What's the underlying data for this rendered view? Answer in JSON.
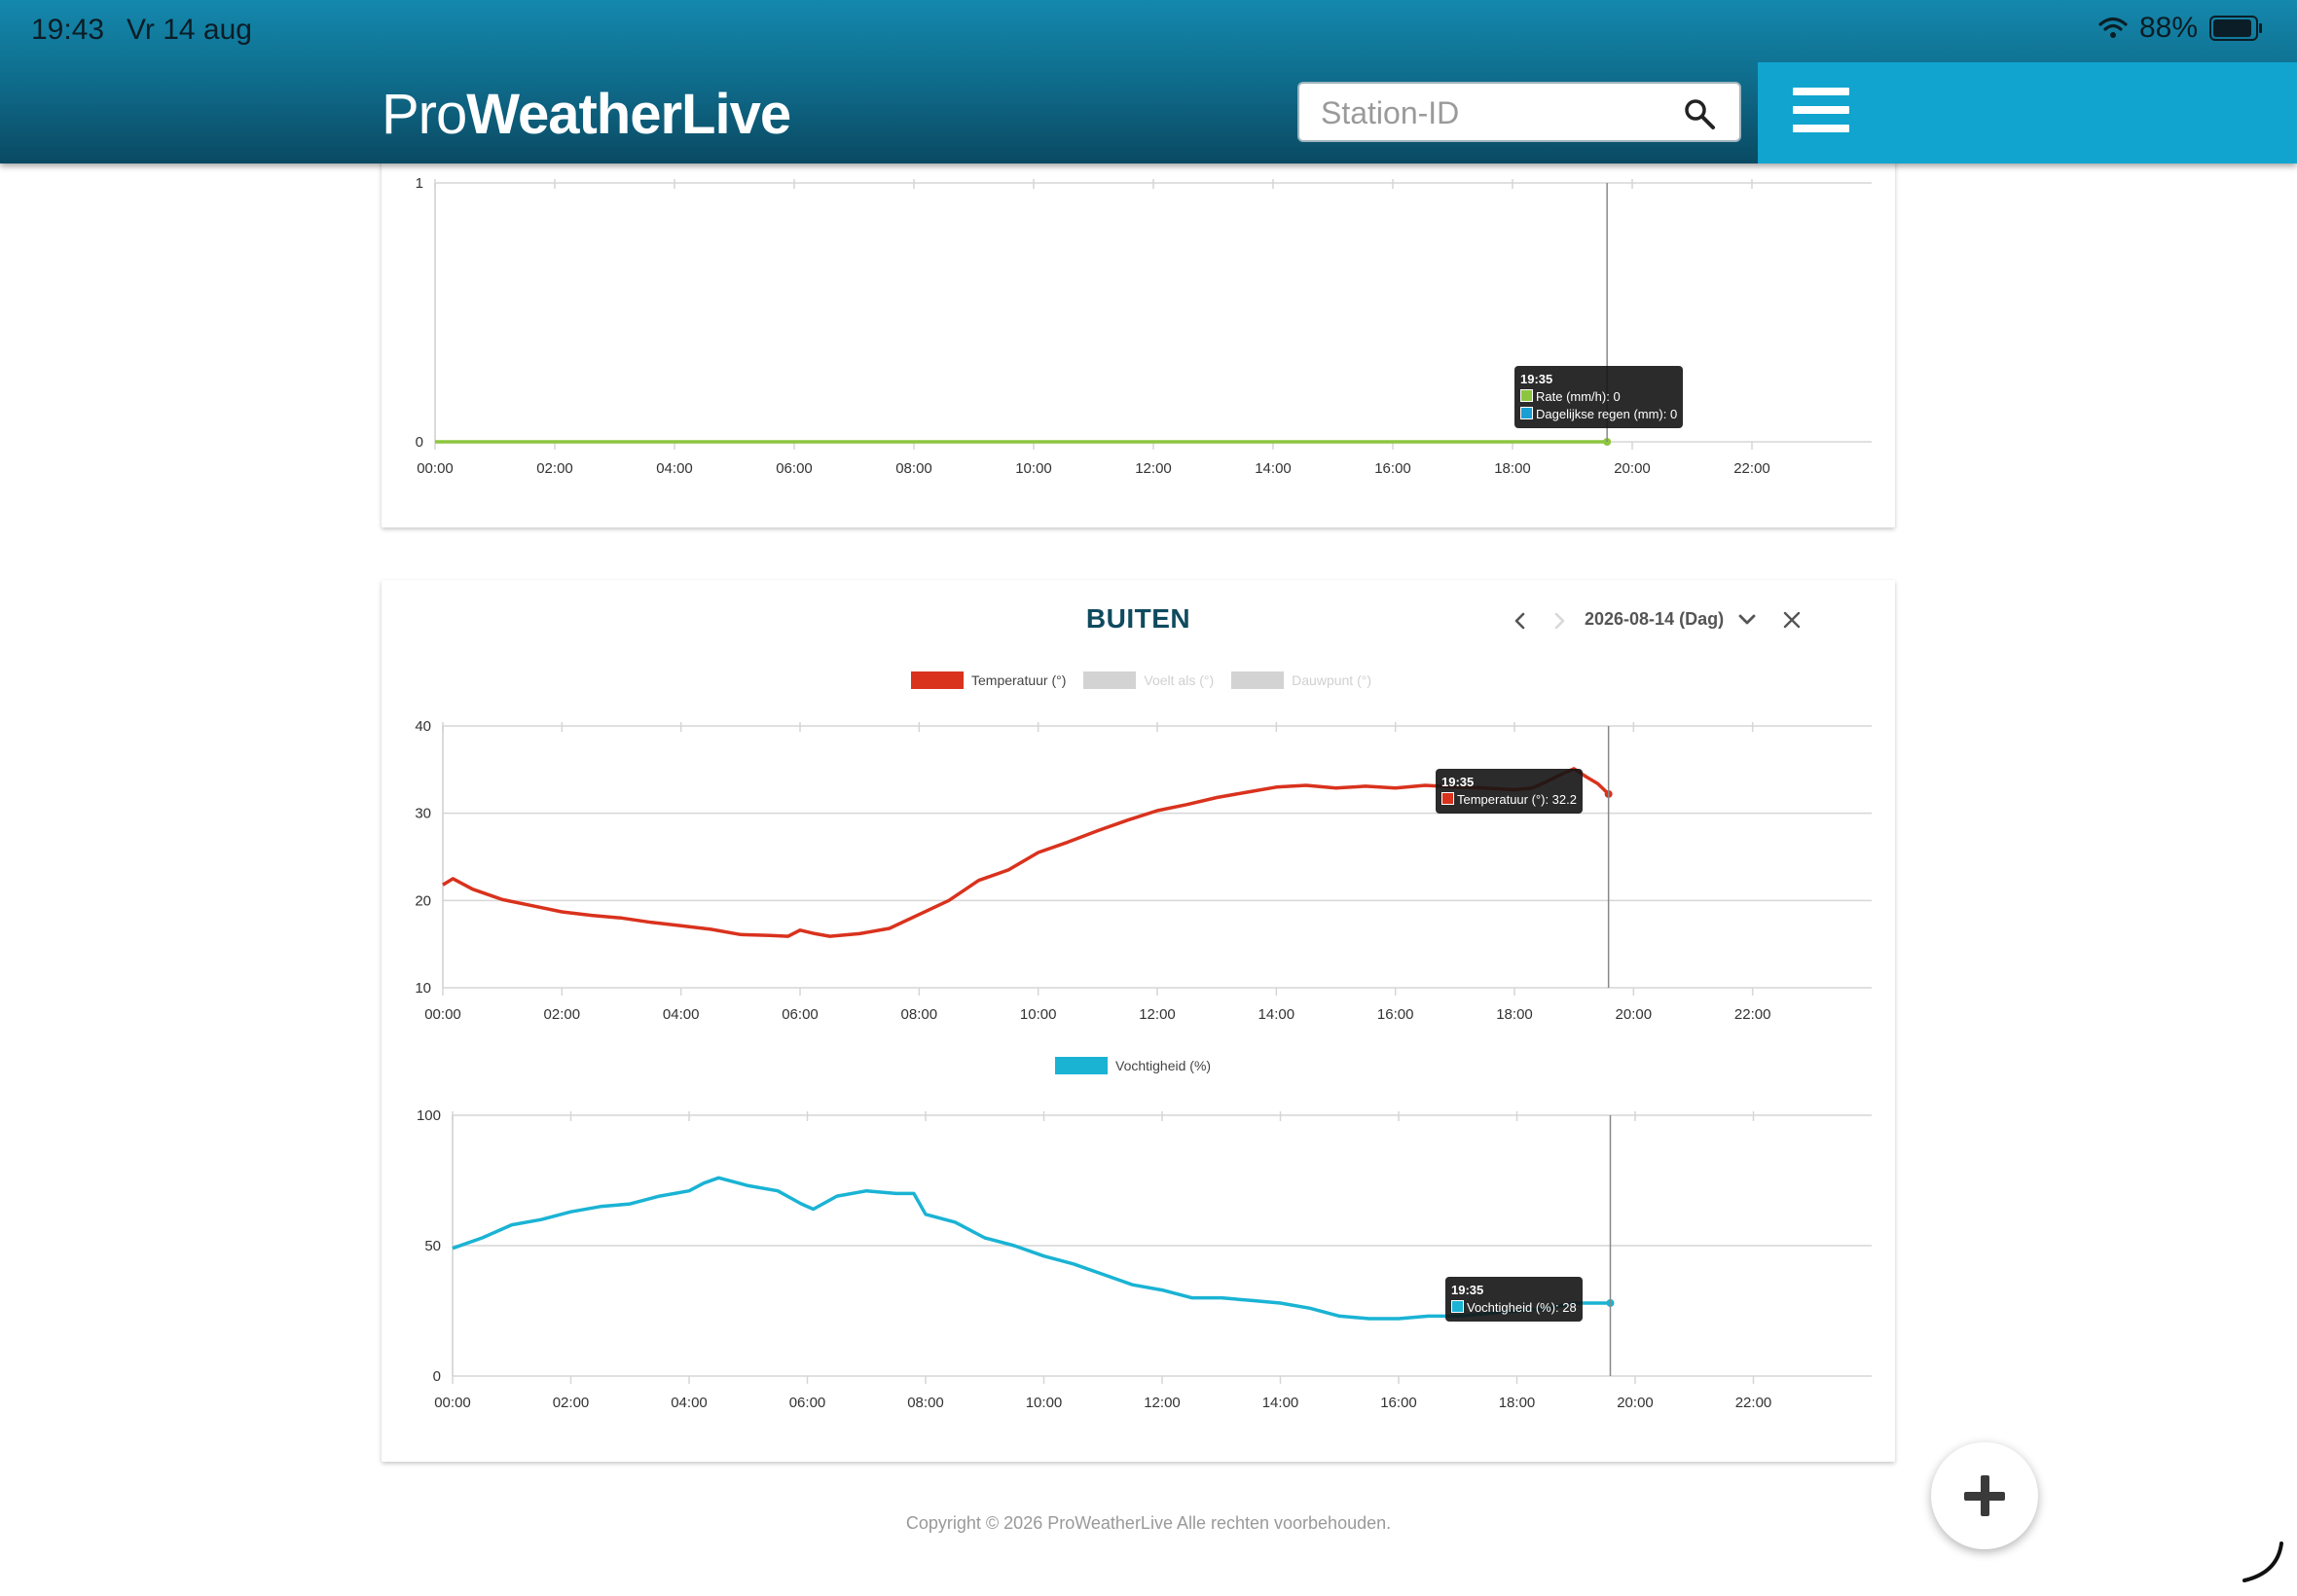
{
  "status_bar": {
    "time": "19:43",
    "date": "Vr 14 aug",
    "battery": "88%",
    "wifi_icon": "wifi-icon",
    "battery_icon": "battery-icon"
  },
  "header": {
    "logo_pro": "Pro",
    "logo_weather": "WeatherLive",
    "search_placeholder": "Station-ID",
    "search_value": "",
    "search_icon": "search-icon",
    "menu_icon": "hamburger-menu-icon"
  },
  "rain_chart": {
    "tooltip": {
      "time": "19:35",
      "line1": "Rate (mm/h): 0",
      "line2": "Dagelijkse regen (mm): 0"
    }
  },
  "outside_card": {
    "title": "BUITEN",
    "date_label": "2026-08-14 (Dag)",
    "temp_tooltip": {
      "time": "19:35",
      "line1": "Temperatuur (°): 32.2"
    },
    "humidity_tooltip": {
      "time": "19:35",
      "line1": "Vochtigheid (%): 28"
    }
  },
  "footer": {
    "copyright": "Copyright © 2026 ProWeatherLive Alle rechten voorbehouden."
  },
  "colors": {
    "header": "#0f6f8f",
    "accent": "#10a4cf",
    "temperature": "#d9321d",
    "humidity": "#1ab3d4",
    "rain_rate": "#8cc63f",
    "rain_daily": "#1a9fd4",
    "disabled": "#d3d3d3"
  },
  "chart_data": [
    {
      "id": "rain",
      "type": "line",
      "title": "",
      "xlabel": "",
      "ylabel": "",
      "x_ticks": [
        "00:00",
        "02:00",
        "04:00",
        "06:00",
        "08:00",
        "10:00",
        "12:00",
        "14:00",
        "16:00",
        "18:00",
        "20:00",
        "22:00"
      ],
      "xlim": [
        0,
        24
      ],
      "y_ticks": [
        0,
        1
      ],
      "ylim": [
        0,
        1
      ],
      "grid": true,
      "series": [
        {
          "name": "Rate (mm/h)",
          "color": "#8cc63f",
          "points": [
            [
              0,
              0
            ],
            [
              19.58,
              0
            ]
          ]
        }
      ],
      "crosshair_x": 19.58
    },
    {
      "id": "temperature",
      "type": "line",
      "title": "",
      "xlabel": "",
      "ylabel": "",
      "legend_position": "top-center",
      "legend": [
        {
          "label": "Temperatuur (°)",
          "color": "#d9321d",
          "active": true
        },
        {
          "label": "Voelt als (°)",
          "color": "#d3d3d3",
          "active": false
        },
        {
          "label": "Dauwpunt (°)",
          "color": "#d3d3d3",
          "active": false
        }
      ],
      "x_ticks": [
        "00:00",
        "02:00",
        "04:00",
        "06:00",
        "08:00",
        "10:00",
        "12:00",
        "14:00",
        "16:00",
        "18:00",
        "20:00",
        "22:00"
      ],
      "xlim": [
        0,
        24
      ],
      "y_ticks": [
        10,
        20,
        30,
        40
      ],
      "ylim": [
        10,
        40
      ],
      "grid": true,
      "series": [
        {
          "name": "Temperatuur (°)",
          "color": "#d9321d",
          "points": [
            [
              0,
              21.8
            ],
            [
              0.17,
              22.5
            ],
            [
              0.5,
              21.3
            ],
            [
              1,
              20.1
            ],
            [
              1.5,
              19.4
            ],
            [
              2,
              18.7
            ],
            [
              2.5,
              18.3
            ],
            [
              3,
              18.0
            ],
            [
              3.5,
              17.5
            ],
            [
              4,
              17.1
            ],
            [
              4.5,
              16.7
            ],
            [
              5,
              16.1
            ],
            [
              5.5,
              16.0
            ],
            [
              5.8,
              15.9
            ],
            [
              6,
              16.6
            ],
            [
              6.25,
              16.2
            ],
            [
              6.5,
              15.9
            ],
            [
              7,
              16.2
            ],
            [
              7.5,
              16.8
            ],
            [
              8,
              18.4
            ],
            [
              8.5,
              20.0
            ],
            [
              9,
              22.3
            ],
            [
              9.5,
              23.5
            ],
            [
              10,
              25.5
            ],
            [
              10.5,
              26.7
            ],
            [
              11,
              28.0
            ],
            [
              11.5,
              29.2
            ],
            [
              12,
              30.3
            ],
            [
              12.5,
              31.0
            ],
            [
              13,
              31.8
            ],
            [
              13.5,
              32.4
            ],
            [
              14,
              33.0
            ],
            [
              14.5,
              33.2
            ],
            [
              15,
              32.9
            ],
            [
              15.5,
              33.1
            ],
            [
              16,
              32.9
            ],
            [
              16.5,
              33.2
            ],
            [
              17,
              33.0
            ],
            [
              17.5,
              32.9
            ],
            [
              18,
              32.7
            ],
            [
              18.3,
              32.9
            ],
            [
              18.5,
              33.5
            ],
            [
              18.8,
              34.5
            ],
            [
              19,
              35.1
            ],
            [
              19.2,
              34.2
            ],
            [
              19.4,
              33.4
            ],
            [
              19.58,
              32.2
            ]
          ]
        }
      ],
      "crosshair_x": 19.58
    },
    {
      "id": "humidity",
      "type": "line",
      "title": "",
      "xlabel": "",
      "ylabel": "",
      "legend_position": "top-center",
      "legend": [
        {
          "label": "Vochtigheid (%)",
          "color": "#1ab3d4",
          "active": true
        }
      ],
      "x_ticks": [
        "00:00",
        "02:00",
        "04:00",
        "06:00",
        "08:00",
        "10:00",
        "12:00",
        "14:00",
        "16:00",
        "18:00",
        "20:00",
        "22:00"
      ],
      "xlim": [
        0,
        24
      ],
      "y_ticks": [
        0,
        50,
        100
      ],
      "ylim": [
        0,
        100
      ],
      "grid": true,
      "series": [
        {
          "name": "Vochtigheid (%)",
          "color": "#1ab3d4",
          "points": [
            [
              0,
              49
            ],
            [
              0.5,
              53
            ],
            [
              1,
              58
            ],
            [
              1.5,
              60
            ],
            [
              2,
              63
            ],
            [
              2.5,
              65
            ],
            [
              3,
              66
            ],
            [
              3.5,
              69
            ],
            [
              4,
              71
            ],
            [
              4.25,
              74
            ],
            [
              4.5,
              76
            ],
            [
              5,
              73
            ],
            [
              5.5,
              71
            ],
            [
              5.9,
              66
            ],
            [
              6.1,
              64
            ],
            [
              6.5,
              69
            ],
            [
              7,
              71
            ],
            [
              7.5,
              70
            ],
            [
              7.8,
              70
            ],
            [
              8,
              62
            ],
            [
              8.5,
              59
            ],
            [
              9,
              53
            ],
            [
              9.5,
              50
            ],
            [
              10,
              46
            ],
            [
              10.5,
              43
            ],
            [
              11,
              39
            ],
            [
              11.5,
              35
            ],
            [
              12,
              33
            ],
            [
              12.5,
              30
            ],
            [
              13,
              30
            ],
            [
              13.5,
              29
            ],
            [
              14,
              28
            ],
            [
              14.5,
              26
            ],
            [
              15,
              23
            ],
            [
              15.5,
              22
            ],
            [
              16,
              22
            ],
            [
              16.5,
              23
            ],
            [
              17,
              23
            ],
            [
              17.5,
              24
            ],
            [
              18,
              25
            ],
            [
              18.5,
              26
            ],
            [
              19,
              28
            ],
            [
              19.58,
              28
            ]
          ]
        }
      ],
      "crosshair_x": 19.58
    }
  ]
}
